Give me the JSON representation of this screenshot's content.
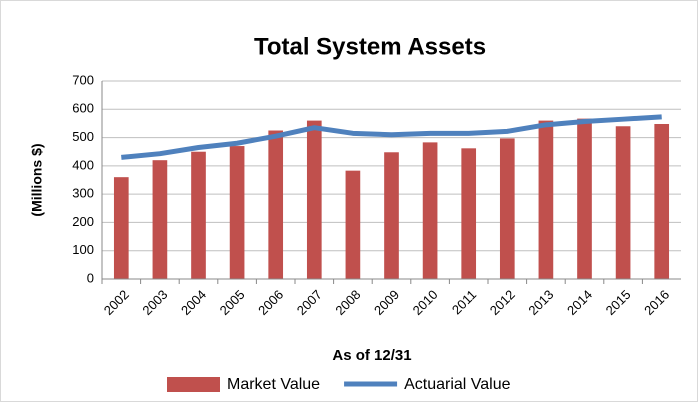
{
  "chart_data": {
    "type": "bar",
    "title": "Total System Assets",
    "y_label": "(Millions $)",
    "x_label": "As of 12/31",
    "categories": [
      "2002",
      "2003",
      "2004",
      "2005",
      "2006",
      "2007",
      "2008",
      "2009",
      "2010",
      "2011",
      "2012",
      "2013",
      "2014",
      "2015",
      "2016"
    ],
    "series": [
      {
        "name": "Market Value",
        "type": "bar",
        "color": "#c0504d",
        "values": [
          360,
          420,
          450,
          470,
          525,
          560,
          383,
          448,
          483,
          462,
          497,
          560,
          567,
          540,
          548
        ]
      },
      {
        "name": "Actuarial Value",
        "type": "line",
        "color": "#4f81bd",
        "values": [
          430,
          443,
          465,
          480,
          505,
          535,
          515,
          510,
          515,
          515,
          522,
          545,
          557,
          565,
          573
        ]
      }
    ],
    "ylim": [
      0,
      700
    ],
    "yticks": [
      0,
      100,
      200,
      300,
      400,
      500,
      600,
      700
    ],
    "grid": true,
    "legend": "bottom"
  }
}
